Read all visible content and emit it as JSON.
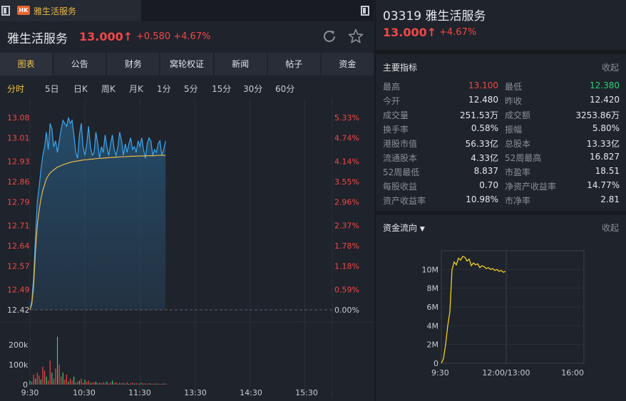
{
  "tab": {
    "badge": "HK",
    "title": "雅生活服务"
  },
  "header": {
    "name": "雅生活服务",
    "price": "13.000",
    "arrow": "↑",
    "change": "+0.580",
    "change_pct": "+4.67%"
  },
  "nav": [
    "图表",
    "公告",
    "财务",
    "窝轮权证",
    "新闻",
    "帖子",
    "资金"
  ],
  "nav_active": 0,
  "periods": [
    "分时",
    "5日",
    "日K",
    "周K",
    "月K",
    "1分",
    "5分",
    "15分",
    "30分",
    "60分"
  ],
  "period_active": 0,
  "chart_data": [
    {
      "type": "line",
      "price_ticks": [
        "13.08",
        "13.01",
        "12.93",
        "12.86",
        "12.79",
        "12.71",
        "12.64",
        "12.57",
        "12.49",
        "12.42"
      ],
      "pct_ticks": [
        "5.33%",
        "4.74%",
        "4.14%",
        "3.55%",
        "2.96%",
        "2.37%",
        "1.78%",
        "1.18%",
        "0.59%",
        "0.00%"
      ],
      "ylim": [
        12.42,
        13.08
      ],
      "time_ticks": [
        "9:30",
        "10:30",
        "11:30",
        "13:30",
        "14:30",
        "15:30"
      ],
      "price": [
        12.42,
        12.45,
        12.53,
        12.67,
        12.79,
        12.84,
        12.9,
        12.95,
        12.98,
        13.03,
        12.97,
        13.06,
        13.04,
        12.98,
        13.0,
        12.96,
        13.0,
        13.04,
        13.07,
        13.06,
        13.05,
        13.08,
        13.06,
        13.07,
        13.02,
        12.96,
        12.94,
        13.02,
        13.06,
        12.98,
        12.95,
        12.99,
        13.05,
        12.98,
        12.95,
        12.96,
        13.03,
        12.99,
        12.94,
        12.98,
        12.96,
        13.02,
        12.98,
        12.95,
        12.99,
        13.02,
        12.97,
        12.95,
        12.98,
        13.03,
        13.0,
        12.95,
        12.99,
        12.96,
        12.99,
        13.01,
        12.97,
        12.98,
        12.96,
        13.0,
        12.98,
        13.01,
        12.97,
        12.94,
        12.99,
        13.01,
        13.0,
        12.95,
        12.97,
        12.96,
        12.99,
        13.0,
        12.95,
        12.97,
        13.0
      ],
      "avg": [
        12.42,
        12.44,
        12.5,
        12.62,
        12.71,
        12.76,
        12.8,
        12.83,
        12.85,
        12.87,
        12.88,
        12.89,
        12.895,
        12.9,
        12.905,
        12.91,
        12.912,
        12.915,
        12.918,
        12.92,
        12.922,
        12.924,
        12.926,
        12.928,
        12.929,
        12.93,
        12.931,
        12.932,
        12.933,
        12.934,
        12.935,
        12.935,
        12.936,
        12.937,
        12.937,
        12.938,
        12.939,
        12.939,
        12.94,
        12.94,
        12.941,
        12.941,
        12.942,
        12.942,
        12.943,
        12.943,
        12.943,
        12.944,
        12.944,
        12.945,
        12.945,
        12.945,
        12.946,
        12.946,
        12.946,
        12.947,
        12.947,
        12.947,
        12.947,
        12.948,
        12.948,
        12.948,
        12.948,
        12.948,
        12.949,
        12.949,
        12.949,
        12.949,
        12.949,
        12.95,
        12.95,
        12.95,
        12.95,
        12.95,
        12.95
      ],
      "volume_ticks": [
        "200k",
        "100k",
        "0"
      ],
      "volume_max": 250000,
      "volume": [
        20000,
        15000,
        50000,
        30000,
        60000,
        45000,
        25000,
        90000,
        70000,
        40000,
        20000,
        120000,
        60000,
        30000,
        80000,
        240000,
        100000,
        40000,
        60000,
        25000,
        50000,
        15000,
        30000,
        20000,
        40000,
        10000,
        15000,
        20000,
        30000,
        10000,
        25000,
        15000,
        20000,
        8000,
        10000,
        12000,
        15000,
        8000,
        10000,
        6000,
        12000,
        8000,
        15000,
        5000,
        10000,
        20000,
        8000,
        12000,
        5000,
        10000,
        6000,
        8000,
        5000,
        12000,
        4000,
        6000,
        10000,
        5000,
        8000,
        4000,
        6000,
        10000,
        5000,
        6000,
        3000,
        8000,
        5000,
        4000,
        6000,
        4000,
        5000,
        3000,
        4000,
        6000,
        5000
      ]
    },
    {
      "type": "line",
      "title": "资金流向",
      "yticks": [
        "10M",
        "8M",
        "6M",
        "4M",
        "2M",
        "0"
      ],
      "ylim": [
        0,
        12000000
      ],
      "xticks": [
        "9:30",
        "12:00/13:00",
        "16:00"
      ],
      "values": [
        0,
        500000,
        2000000,
        4000000,
        5500000,
        10000000,
        10800000,
        10500000,
        11200000,
        11000000,
        11400000,
        11300000,
        10900000,
        11100000,
        10400000,
        10700000,
        10500000,
        10600000,
        10200000,
        10400000,
        10300000,
        10100000,
        10200000,
        10000000,
        10100000,
        9900000,
        10000000,
        9800000,
        9900000,
        9700000,
        9800000
      ]
    }
  ],
  "right": {
    "code": "03319",
    "name": "雅生活服务",
    "price": "13.000",
    "arrow": "↑",
    "change_pct": "+4.67%",
    "metrics_title": "主要指标",
    "fold": "收起",
    "metrics": [
      {
        "l1": "最高",
        "v1": "13.100",
        "c1": "up",
        "l2": "最低",
        "v2": "12.380",
        "c2": "down"
      },
      {
        "l1": "今开",
        "v1": "12.480",
        "c1": "",
        "l2": "昨收",
        "v2": "12.420",
        "c2": ""
      },
      {
        "l1": "成交量",
        "v1": "251.53万",
        "c1": "",
        "l2": "成交额",
        "v2": "3253.86万",
        "c2": ""
      },
      {
        "l1": "换手率",
        "v1": "0.58%",
        "c1": "",
        "l2": "振幅",
        "v2": "5.80%",
        "c2": ""
      },
      {
        "l1": "港股市值",
        "v1": "56.33亿",
        "c1": "",
        "l2": "总股本",
        "v2": "13.33亿",
        "c2": ""
      },
      {
        "l1": "流通股本",
        "v1": "4.33亿",
        "c1": "",
        "l2": "52周最高",
        "v2": "16.827",
        "c2": ""
      },
      {
        "l1": "52周最低",
        "v1": "8.837",
        "c1": "",
        "l2": "市盈率",
        "v2": "18.51",
        "c2": ""
      },
      {
        "l1": "每股收益",
        "v1": "0.70",
        "c1": "",
        "l2": "净资产收益率",
        "v2": "14.77%",
        "c2": ""
      },
      {
        "l1": "资产收益率",
        "v1": "10.98%",
        "c1": "",
        "l2": "市净率",
        "v2": "2.81",
        "c2": ""
      }
    ],
    "flow_title": "资金流向",
    "flow_fold": "收起"
  },
  "colors": {
    "up": "#f04848",
    "down": "#2ed07a",
    "accent": "#f0c24a",
    "price_line": "#3aa6f0",
    "avg_line": "#e8b84a",
    "flow_line": "#f0d020"
  }
}
